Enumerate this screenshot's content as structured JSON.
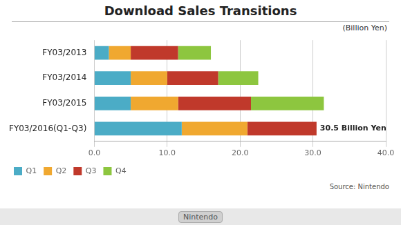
{
  "chart_data": {
    "type": "bar",
    "orientation": "horizontal",
    "stacked": true,
    "title": "Download Sales Transitions",
    "unit_label": "(Billion Yen)",
    "source": "Source: Nintendo",
    "footer": "Nintendo",
    "annotations": [
      {
        "text": "30.5 Billion Yen",
        "category": "FY03/2016(Q1-Q3)",
        "x": 30.5
      }
    ],
    "categories": [
      "FY03/2013",
      "FY03/2014",
      "FY03/2015",
      "FY03/2016(Q1-Q3)"
    ],
    "series": [
      {
        "name": "Q1",
        "color": "#4bacc6",
        "values": [
          2.0,
          5.0,
          5.0,
          12.0
        ]
      },
      {
        "name": "Q2",
        "color": "#f0a830",
        "values": [
          3.0,
          5.0,
          6.5,
          9.0
        ]
      },
      {
        "name": "Q3",
        "color": "#c0392b",
        "values": [
          6.5,
          7.0,
          10.0,
          9.5
        ]
      },
      {
        "name": "Q4",
        "color": "#8dc63f",
        "values": [
          4.5,
          5.5,
          10.0,
          0.0
        ]
      }
    ],
    "xlim": [
      0,
      40
    ],
    "xticks": [
      {
        "value": 0,
        "label": "0.0"
      },
      {
        "value": 10,
        "label": "10.0"
      },
      {
        "value": 20,
        "label": "20.0"
      },
      {
        "value": 30,
        "label": "30.0"
      },
      {
        "value": 40,
        "label": "40.0"
      }
    ],
    "grid": true,
    "legend": "lower left"
  }
}
